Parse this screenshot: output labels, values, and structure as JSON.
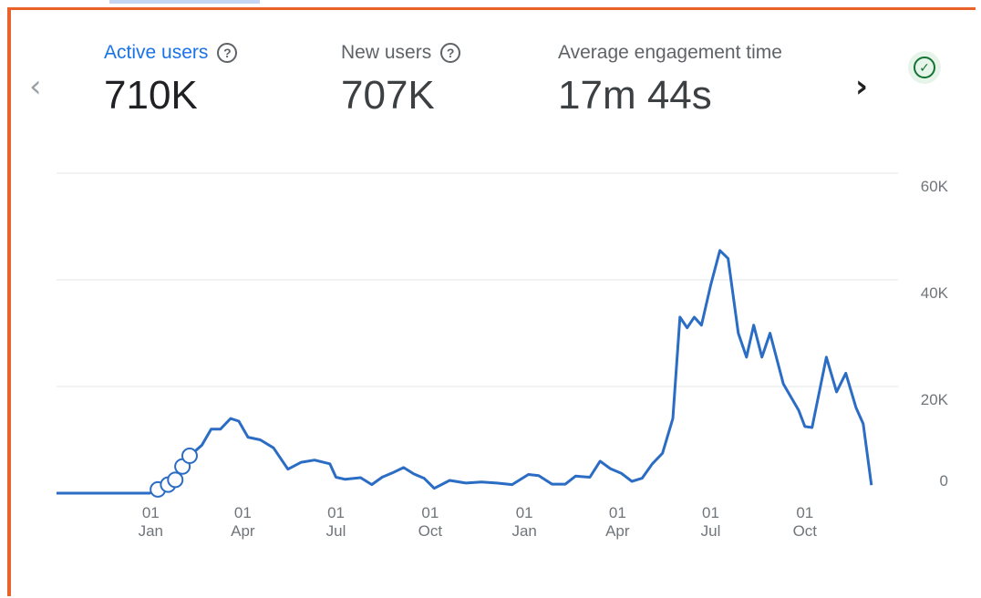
{
  "metrics": [
    {
      "label": "Active users",
      "value": "710K"
    },
    {
      "label": "New users",
      "value": "707K"
    },
    {
      "label": "Average engagement time",
      "value": "17m 44s"
    }
  ],
  "nav": {
    "prev": "‹",
    "next": "›"
  },
  "colors": {
    "accent": "#1a73e8",
    "line": "#2b6cc4",
    "frame": "#e9622a",
    "status": "#137333"
  },
  "icons": {
    "help": "help-circle-icon",
    "status": "check-circle-icon"
  },
  "chart_data": {
    "type": "line",
    "title": "",
    "xlabel": "",
    "ylabel": "",
    "ylim": [
      0,
      60000
    ],
    "y_ticks": [
      "0",
      "20K",
      "40K",
      "60K"
    ],
    "y_tick_values": [
      0,
      20000,
      40000,
      60000
    ],
    "x_range": [
      "2022-10-01",
      "2024-12-31"
    ],
    "x_ticks": [
      {
        "day": "01",
        "month": "Jan",
        "date": "2023-01-01"
      },
      {
        "day": "01",
        "month": "Apr",
        "date": "2023-04-01"
      },
      {
        "day": "01",
        "month": "Jul",
        "date": "2023-07-01"
      },
      {
        "day": "01",
        "month": "Oct",
        "date": "2023-10-01"
      },
      {
        "day": "01",
        "month": "Jan",
        "date": "2024-01-01"
      },
      {
        "day": "01",
        "month": "Apr",
        "date": "2024-04-01"
      },
      {
        "day": "01",
        "month": "Jul",
        "date": "2024-07-01"
      },
      {
        "day": "01",
        "month": "Oct",
        "date": "2024-10-01"
      }
    ],
    "grid": true,
    "series": [
      {
        "name": "",
        "points": [
          [
            "2022-10-01",
            0
          ],
          [
            "2022-11-15",
            0
          ],
          [
            "2022-12-10",
            0
          ],
          [
            "2022-12-31",
            0
          ],
          [
            "2023-01-08",
            700
          ],
          [
            "2023-01-18",
            1600
          ],
          [
            "2023-01-25",
            2500
          ],
          [
            "2023-02-01",
            5000
          ],
          [
            "2023-02-08",
            7000
          ],
          [
            "2023-02-20",
            9000
          ],
          [
            "2023-03-01",
            12000
          ],
          [
            "2023-03-10",
            12000
          ],
          [
            "2023-03-20",
            14000
          ],
          [
            "2023-03-28",
            13500
          ],
          [
            "2023-04-06",
            10500
          ],
          [
            "2023-04-18",
            10000
          ],
          [
            "2023-05-01",
            8500
          ],
          [
            "2023-05-15",
            4500
          ],
          [
            "2023-05-28",
            5800
          ],
          [
            "2023-06-10",
            6200
          ],
          [
            "2023-06-25",
            5500
          ],
          [
            "2023-07-01",
            3000
          ],
          [
            "2023-07-10",
            2600
          ],
          [
            "2023-07-25",
            2900
          ],
          [
            "2023-08-05",
            1600
          ],
          [
            "2023-08-15",
            3000
          ],
          [
            "2023-08-25",
            3800
          ],
          [
            "2023-09-05",
            4800
          ],
          [
            "2023-09-15",
            3600
          ],
          [
            "2023-09-25",
            2800
          ],
          [
            "2023-10-05",
            900
          ],
          [
            "2023-10-20",
            2400
          ],
          [
            "2023-11-05",
            1900
          ],
          [
            "2023-11-20",
            2100
          ],
          [
            "2023-12-05",
            1900
          ],
          [
            "2023-12-20",
            1600
          ],
          [
            "2024-01-05",
            3500
          ],
          [
            "2024-01-15",
            3300
          ],
          [
            "2024-01-28",
            1700
          ],
          [
            "2024-02-10",
            1700
          ],
          [
            "2024-02-20",
            3200
          ],
          [
            "2024-03-05",
            3000
          ],
          [
            "2024-03-15",
            6000
          ],
          [
            "2024-03-25",
            4600
          ],
          [
            "2024-04-05",
            3700
          ],
          [
            "2024-04-15",
            2200
          ],
          [
            "2024-04-25",
            2800
          ],
          [
            "2024-05-05",
            5500
          ],
          [
            "2024-05-15",
            7500
          ],
          [
            "2024-05-25",
            14000
          ],
          [
            "2024-06-01",
            33000
          ],
          [
            "2024-06-08",
            31000
          ],
          [
            "2024-06-15",
            33000
          ],
          [
            "2024-06-22",
            31500
          ],
          [
            "2024-07-01",
            39000
          ],
          [
            "2024-07-10",
            45500
          ],
          [
            "2024-07-18",
            44000
          ],
          [
            "2024-07-28",
            30000
          ],
          [
            "2024-08-05",
            25500
          ],
          [
            "2024-08-12",
            31500
          ],
          [
            "2024-08-20",
            25500
          ],
          [
            "2024-08-28",
            30000
          ],
          [
            "2024-09-10",
            20500
          ],
          [
            "2024-09-25",
            15500
          ],
          [
            "2024-10-01",
            12500
          ],
          [
            "2024-10-08",
            12300
          ],
          [
            "2024-10-22",
            25500
          ],
          [
            "2024-11-01",
            19000
          ],
          [
            "2024-11-10",
            22500
          ],
          [
            "2024-11-20",
            16000
          ],
          [
            "2024-11-27",
            13000
          ],
          [
            "2024-12-05",
            1500
          ]
        ],
        "markers": [
          [
            "2023-01-08",
            700
          ],
          [
            "2023-01-18",
            1600
          ],
          [
            "2023-01-25",
            2500
          ],
          [
            "2023-02-01",
            5000
          ],
          [
            "2023-02-08",
            7000
          ]
        ]
      }
    ]
  }
}
